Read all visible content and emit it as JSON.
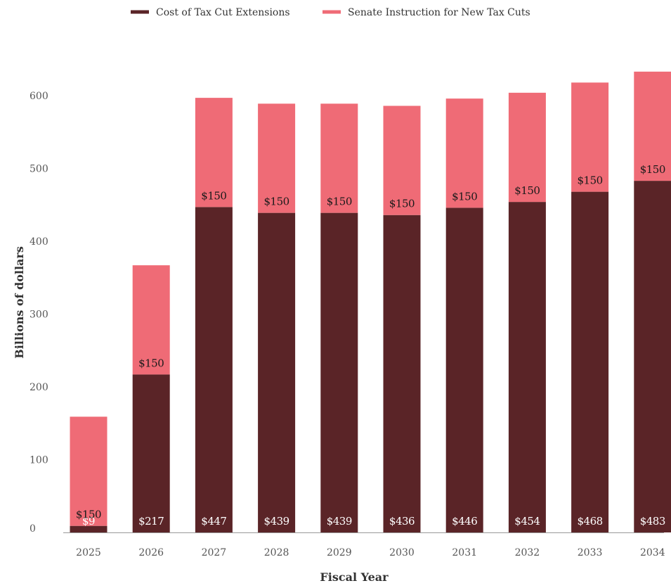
{
  "chart_data": {
    "type": "bar",
    "stacked": true,
    "categories": [
      "2025",
      "2026",
      "2027",
      "2028",
      "2029",
      "2030",
      "2031",
      "2032",
      "2033",
      "2034"
    ],
    "series": [
      {
        "name": "Cost of Tax Cut Extensions",
        "color": "#5a2427",
        "values": [
          9,
          217,
          447,
          439,
          439,
          436,
          446,
          454,
          468,
          483
        ],
        "labels": [
          "$9",
          "$217",
          "$447",
          "$439",
          "$439",
          "$436",
          "$446",
          "$454",
          "$468",
          "$483"
        ]
      },
      {
        "name": "Senate Instruction for New Tax Cuts",
        "color": "#ef6b76",
        "values": [
          150,
          150,
          150,
          150,
          150,
          150,
          150,
          150,
          150,
          150
        ],
        "labels": [
          "$150",
          "$150",
          "$150",
          "$150",
          "$150",
          "$150",
          "$150",
          "$150",
          "$150",
          "$150"
        ]
      }
    ],
    "title": "",
    "xlabel": "Fiscal Year",
    "ylabel": "Billions of dollars",
    "ylim": [
      0,
      600
    ],
    "yticks": [
      "0",
      "100",
      "200",
      "300",
      "400",
      "500",
      "600"
    ],
    "legend_position": "top-center",
    "grid": false
  }
}
